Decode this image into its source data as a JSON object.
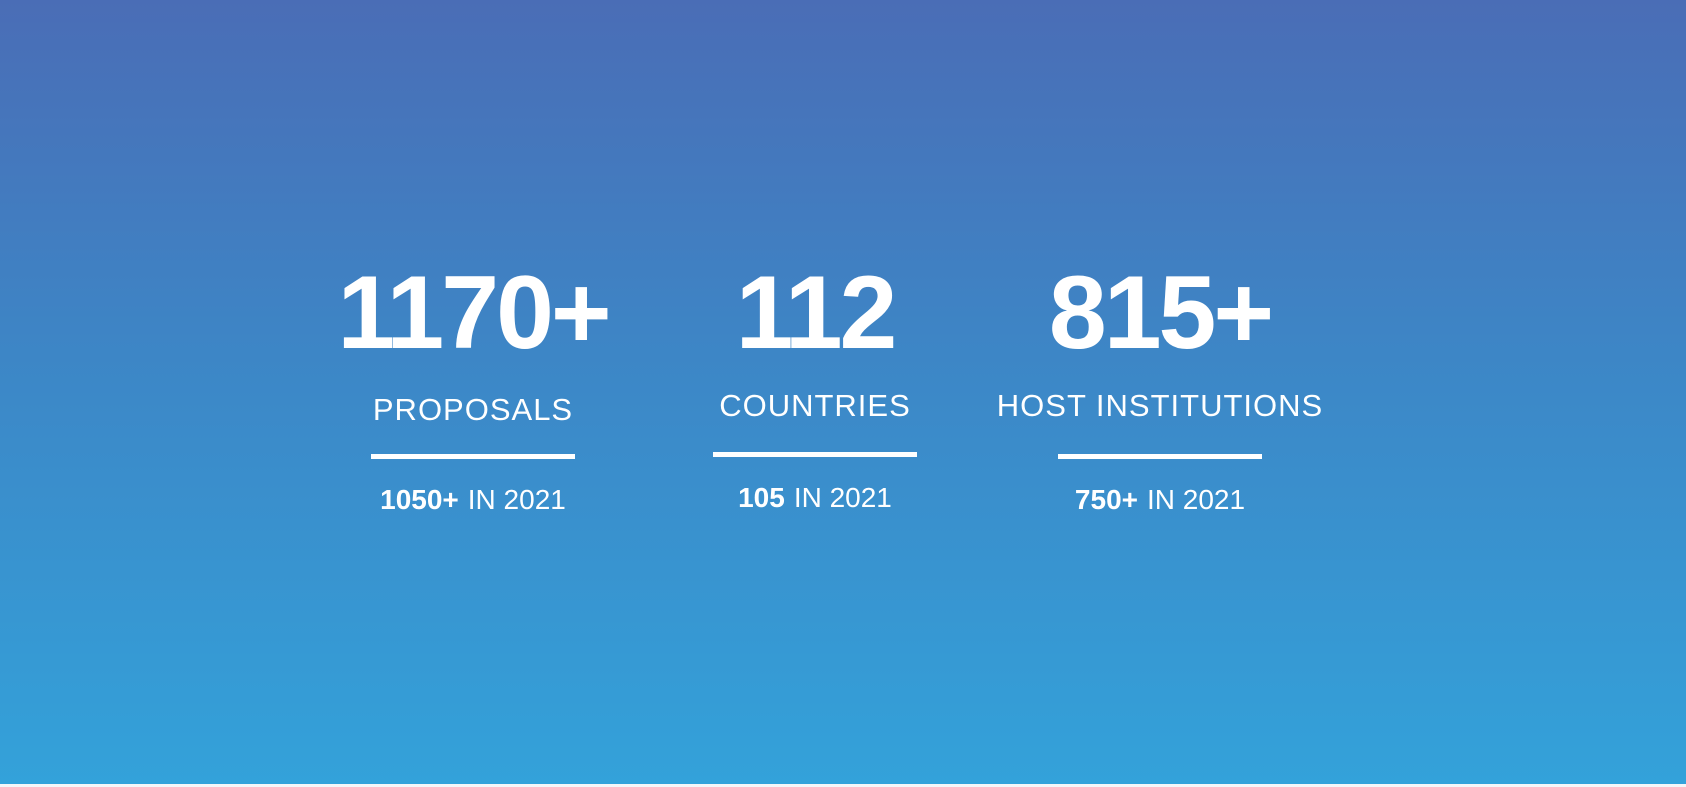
{
  "stats": [
    {
      "value": "1170+",
      "label": "PROPOSALS",
      "previous_value": "1050+",
      "previous_suffix": "IN 2021"
    },
    {
      "value": "112",
      "label": "COUNTRIES",
      "previous_value": "105",
      "previous_suffix": "IN 2021"
    },
    {
      "value": "815+",
      "label": "HOST INSTITUTIONS",
      "previous_value": "750+",
      "previous_suffix": "IN 2021"
    }
  ]
}
